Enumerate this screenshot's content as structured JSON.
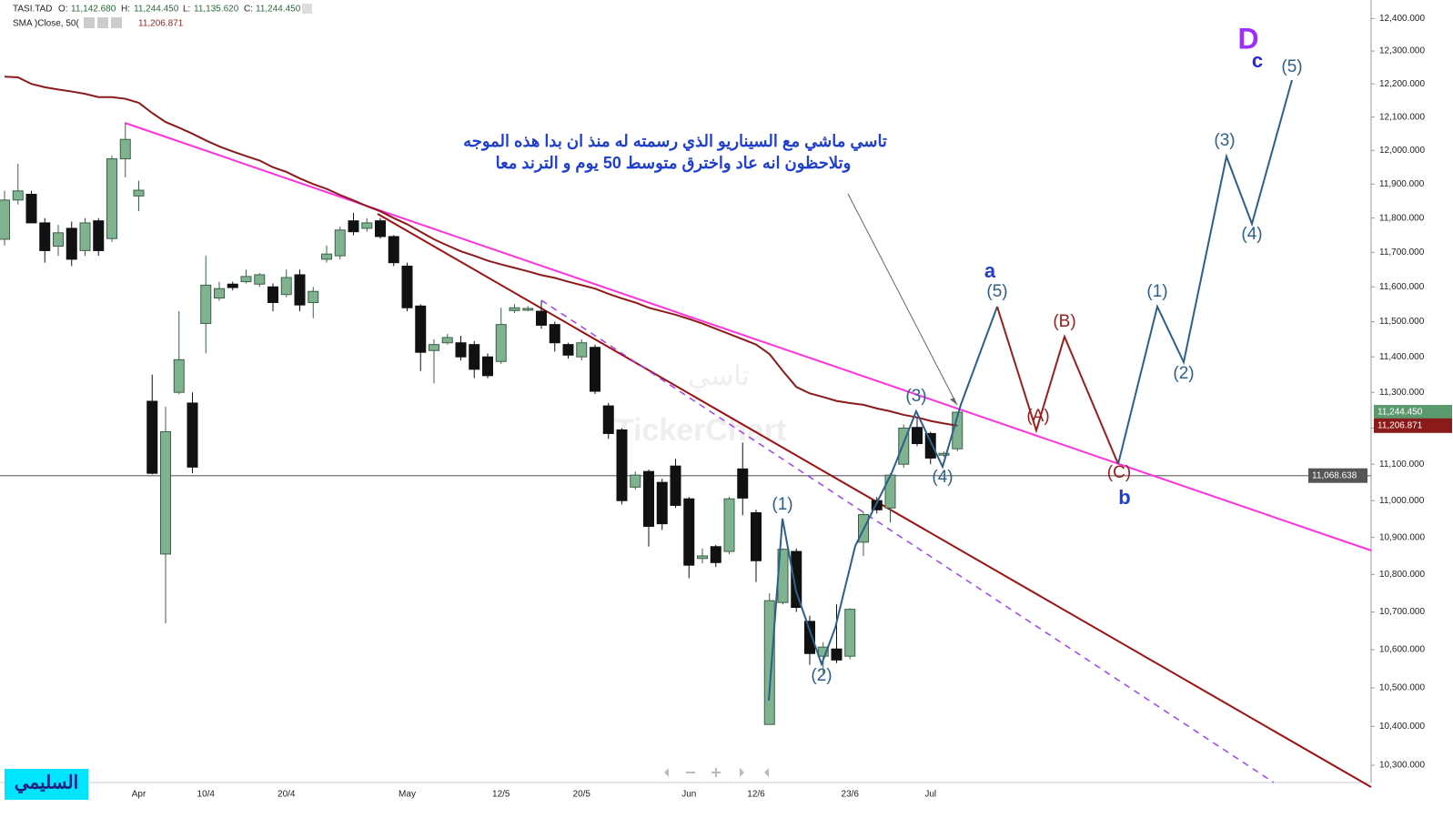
{
  "header": {
    "symbol": "TASI.TAD",
    "o_label": "O:",
    "open": "11,142.680",
    "h_label": "H:",
    "high": "11,244.450",
    "l_label": "L:",
    "low": "11,135.620",
    "c_label": "C:",
    "close": "11,244.450"
  },
  "chart_data": {
    "type": "candlestick",
    "log_scale": true,
    "up_color": "#7fb38f",
    "down_color": "#111111",
    "categories": [
      null,
      null,
      null,
      null,
      null,
      null,
      null,
      null,
      null,
      null,
      "Apr",
      null,
      null,
      null,
      null,
      "10/4",
      null,
      null,
      null,
      null,
      null,
      "20/4",
      null,
      null,
      null,
      null,
      null,
      null,
      null,
      null,
      "May",
      null,
      null,
      null,
      null,
      null,
      null,
      "12/5",
      null,
      null,
      null,
      null,
      null,
      "20/5",
      null,
      null,
      null,
      null,
      null,
      null,
      null,
      "Jun",
      null,
      null,
      null,
      null,
      "12/6",
      null,
      null,
      null,
      null,
      null,
      null,
      "23/6",
      null,
      null,
      null,
      null,
      null,
      "Jul",
      null,
      null
    ],
    "open": [
      11738,
      11853,
      11870,
      11786,
      11718,
      11770,
      11705,
      11792,
      11740,
      11975,
      11865,
      11275,
      10855,
      11300,
      11270,
      11495,
      11568,
      11608,
      11615,
      11608,
      11600,
      11578,
      11635,
      11555,
      11680,
      11690,
      11792,
      11770,
      11792,
      11746,
      11660,
      11545,
      11418,
      11440,
      11440,
      11435,
      11400,
      11387,
      11532,
      11533,
      11530,
      11492,
      11435,
      11400,
      11427,
      11262,
      11195,
      11037,
      11080,
      11050,
      11095,
      11005,
      10843,
      10875,
      10862,
      11087,
      10967,
      10405,
      10725,
      10862,
      10675,
      10583,
      10602,
      10583,
      10887,
      11000,
      10980,
      11100,
      11202,
      11185,
      11125,
      11142.68
    ],
    "high": [
      11880,
      11960,
      11880,
      11800,
      11780,
      11790,
      11800,
      11800,
      11985,
      12080,
      11910,
      11350,
      11260,
      11530,
      11300,
      11690,
      11615,
      11615,
      11650,
      11640,
      11610,
      11650,
      11650,
      11600,
      11720,
      11775,
      11815,
      11800,
      11800,
      11750,
      11670,
      11550,
      11450,
      11465,
      11460,
      11445,
      11410,
      11540,
      11550,
      11545,
      11560,
      11500,
      11440,
      11450,
      11435,
      11270,
      11200,
      11080,
      11085,
      11060,
      11115,
      11010,
      10870,
      10880,
      11010,
      11160,
      10975,
      10750,
      10870,
      10870,
      10690,
      10620,
      10720,
      10710,
      10970,
      11010,
      11075,
      11210,
      11230,
      11190,
      11135,
      11244.45
    ],
    "low": [
      11720,
      11840,
      11785,
      11670,
      11690,
      11660,
      11690,
      11690,
      11730,
      11920,
      11820,
      11072,
      10670,
      11295,
      11075,
      11410,
      11560,
      11590,
      11610,
      11600,
      11530,
      11570,
      11530,
      11510,
      11670,
      11680,
      11750,
      11760,
      11740,
      11660,
      11530,
      11360,
      11325,
      11435,
      11390,
      11340,
      11340,
      11380,
      11525,
      11530,
      11480,
      11415,
      11395,
      11390,
      11295,
      11170,
      10990,
      11030,
      10875,
      10920,
      10980,
      10790,
      10830,
      10820,
      10855,
      10960,
      10780,
      10405,
      10720,
      10700,
      10560,
      10535,
      10565,
      10575,
      10850,
      10965,
      10940,
      11090,
      11150,
      11100,
      11120,
      11135.62
    ],
    "close": [
      11853,
      11880,
      11786,
      11705,
      11757,
      11680,
      11786,
      11705,
      11975,
      12033,
      11882,
      11075,
      11190,
      11392,
      11092,
      11605,
      11595,
      11598,
      11630,
      11635,
      11555,
      11627,
      11548,
      11587,
      11695,
      11765,
      11760,
      11786,
      11746,
      11670,
      11540,
      11413,
      11435,
      11455,
      11400,
      11365,
      11347,
      11492,
      11540,
      11538,
      11490,
      11440,
      11405,
      11440,
      11303,
      11185,
      11000,
      11070,
      10930,
      10937,
      10987,
      10825,
      10850,
      10832,
      11005,
      11007,
      10837,
      10730,
      10868,
      10712,
      10590,
      10607,
      10573,
      10707,
      10962,
      10975,
      11070,
      11200,
      11157,
      11117,
      11130,
      11244.45
    ],
    "sma": {
      "name": "SMA )Close, 50(",
      "color": "#8b1a1a",
      "value_label": "11,206.871",
      "values": [
        12222,
        12220,
        12200,
        12190,
        12183,
        12177,
        12170,
        12160,
        12160,
        12155,
        12143,
        12112,
        12085,
        12068,
        12050,
        12030,
        12012,
        11997,
        11983,
        11970,
        11950,
        11936,
        11917,
        11900,
        11886,
        11868,
        11852,
        11835,
        11820,
        11800,
        11782,
        11760,
        11738,
        11720,
        11703,
        11690,
        11676,
        11665,
        11655,
        11645,
        11634,
        11626,
        11615,
        11605,
        11595,
        11580,
        11567,
        11555,
        11540,
        11530,
        11520,
        11508,
        11495,
        11480,
        11465,
        11450,
        11435,
        11408,
        11360,
        11315,
        11297,
        11287,
        11276,
        11270,
        11265,
        11255,
        11247,
        11237,
        11230,
        11220,
        11213,
        11206.871
      ]
    },
    "last_price": {
      "value": 11244.45,
      "label": "11,244.450",
      "color": "#5b9a6f"
    },
    "hline": {
      "value": 11068.638,
      "label": "11,068.638",
      "color": "#888888"
    },
    "ylim": [
      10256,
      12457
    ],
    "yticks": [
      {
        "value": 12400,
        "label": "12,400.000"
      },
      {
        "value": 12300,
        "label": "12,300.000"
      },
      {
        "value": 12200,
        "label": "12,200.000"
      },
      {
        "value": 12100,
        "label": "12,100.000"
      },
      {
        "value": 12000,
        "label": "12,000.000"
      },
      {
        "value": 11900,
        "label": "11,900.000"
      },
      {
        "value": 11800,
        "label": "11,800.000"
      },
      {
        "value": 11700,
        "label": "11,700.000"
      },
      {
        "value": 11600,
        "label": "11,600.000"
      },
      {
        "value": 11500,
        "label": "11,500.000"
      },
      {
        "value": 11400,
        "label": "11,400.000"
      },
      {
        "value": 11300,
        "label": "11,300.000"
      },
      {
        "value": 11200,
        "label": "11,200.000"
      },
      {
        "value": 11100,
        "label": "11,100.000"
      },
      {
        "value": 11000,
        "label": "11,000.000"
      },
      {
        "value": 10900,
        "label": "10,900.000"
      },
      {
        "value": 10800,
        "label": "10,800.000"
      },
      {
        "value": 10700,
        "label": "10,700.000"
      },
      {
        "value": 10600,
        "label": "10,600.000"
      },
      {
        "value": 10500,
        "label": "10,500.000"
      },
      {
        "value": 10400,
        "label": "10,400.000"
      },
      {
        "value": 10300,
        "label": "10,300.000"
      }
    ],
    "annotation": [
      "تاسي ماشي مع السيناريو الذي رسمته له منذ ان بدا هذه الموجه",
      "وتلاحظون انه عاد واخترق متوسط 50 يوم و الترند معا"
    ],
    "waves": [
      "(1)",
      "(2)",
      "(3)",
      "(4)",
      "(5)",
      "a",
      "(A)",
      "(B)",
      "(C)",
      "b",
      "(1)",
      "(2)",
      "(3)",
      "(4)",
      "(5)",
      "c",
      "D"
    ],
    "watermark": [
      "تاسي",
      "TickerChart"
    ],
    "signature": "السليمي"
  }
}
